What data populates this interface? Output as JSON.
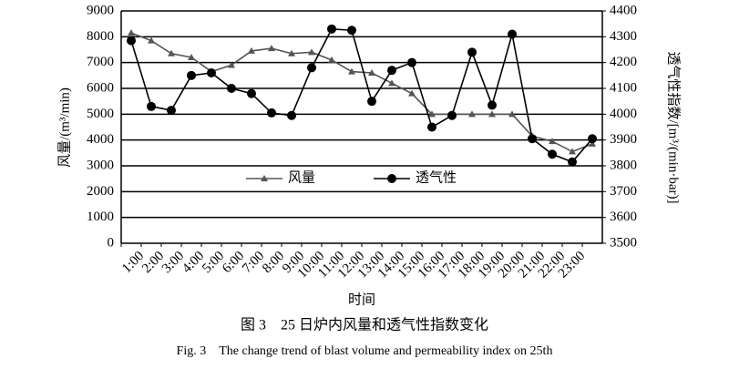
{
  "chart_data": {
    "type": "line",
    "categories": [
      "1:00",
      "2:00",
      "3:00",
      "4:00",
      "5:00",
      "6:00",
      "7:00",
      "8:00",
      "9:00",
      "10:00",
      "11:00",
      "12:00",
      "13:00",
      "14:00",
      "15:00",
      "16:00",
      "17:00",
      "18:00",
      "19:00",
      "20:00",
      "21:00",
      "22:00",
      "23:00",
      null
    ],
    "series": [
      {
        "name": "风量",
        "color": "#555555",
        "marker": "triangle",
        "values": [
          8150,
          7850,
          7350,
          7200,
          6650,
          6900,
          7450,
          7550,
          7350,
          7400,
          7100,
          6650,
          6600,
          6200,
          5800,
          5000,
          5000,
          5000,
          5000,
          5000,
          4150,
          3950,
          3550,
          3850
        ]
      },
      {
        "name": "透气性",
        "color": "#000000",
        "marker": "circle",
        "axis": "y2",
        "values": [
          4285,
          4030,
          4015,
          4150,
          4160,
          4100,
          4080,
          4005,
          3995,
          4180,
          4330,
          4325,
          4050,
          4170,
          4200,
          3950,
          3995,
          4240,
          4035,
          4310,
          3905,
          3845,
          3815,
          3905
        ]
      }
    ],
    "ylim": [
      0,
      9000
    ],
    "yticks": [
      0,
      1000,
      2000,
      3000,
      4000,
      5000,
      6000,
      7000,
      8000,
      9000
    ],
    "y2lim": [
      3500,
      4400
    ],
    "y2ticks": [
      3500,
      3600,
      3700,
      3800,
      3900,
      4000,
      4100,
      4200,
      4300,
      4400
    ],
    "y_label": "风量/(m³/min)",
    "y2_label": "透气性指数/[m³/(min·bar)]",
    "x_label": "时间",
    "grid": true,
    "caption_cn": "图 3　25 日炉内风量和透气性指数变化",
    "caption_en": "Fig. 3　The change trend of blast volume and permeability index on 25th"
  }
}
